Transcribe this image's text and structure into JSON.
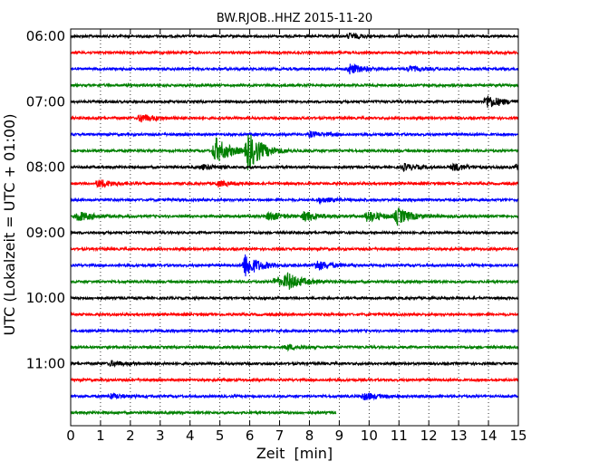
{
  "chart_data": {
    "type": "line",
    "title": "BW.RJOB..HHZ 2015-11-20",
    "xlabel": "Zeit  [min]",
    "ylabel": "UTC (Lokalzeit = UTC + 01:00)",
    "xlim": [
      0,
      15
    ],
    "x_ticks": [
      "0",
      "1",
      "2",
      "3",
      "4",
      "5",
      "6",
      "7",
      "8",
      "9",
      "10",
      "11",
      "12",
      "13",
      "14",
      "15"
    ],
    "y_ticks": [
      "06:00",
      "07:00",
      "08:00",
      "09:00",
      "10:00",
      "11:00"
    ],
    "minutes_per_line": 15,
    "grid": "vertical dotted",
    "colors": [
      "#000000",
      "#ff0000",
      "#0000ff",
      "#008000"
    ],
    "traces": [
      {
        "start": "06:00",
        "events": [
          {
            "t": 9.3,
            "amp": 3
          }
        ]
      },
      {
        "start": "06:15",
        "events": []
      },
      {
        "start": "06:30",
        "events": [
          {
            "t": 9.3,
            "amp": 6
          },
          {
            "t": 11.3,
            "amp": 3
          }
        ]
      },
      {
        "start": "06:45",
        "events": []
      },
      {
        "start": "07:00",
        "events": [
          {
            "t": 13.9,
            "amp": 8
          }
        ]
      },
      {
        "start": "07:15",
        "events": [
          {
            "t": 2.3,
            "amp": 5
          }
        ]
      },
      {
        "start": "07:30",
        "events": [
          {
            "t": 8.0,
            "amp": 3
          }
        ]
      },
      {
        "start": "07:45",
        "events": [
          {
            "t": 4.8,
            "amp": 16
          },
          {
            "t": 5.9,
            "amp": 22
          }
        ]
      },
      {
        "start": "08:00",
        "events": [
          {
            "t": 4.4,
            "amp": 3
          },
          {
            "t": 11.1,
            "amp": 4
          },
          {
            "t": 12.8,
            "amp": 4
          },
          {
            "t": 14.9,
            "amp": 3
          }
        ]
      },
      {
        "start": "08:15",
        "events": [
          {
            "t": 0.9,
            "amp": 5
          },
          {
            "t": 4.9,
            "amp": 3
          }
        ]
      },
      {
        "start": "08:30",
        "events": [
          {
            "t": 8.3,
            "amp": 3
          }
        ]
      },
      {
        "start": "08:45",
        "events": [
          {
            "t": 0.2,
            "amp": 6
          },
          {
            "t": 6.6,
            "amp": 5
          },
          {
            "t": 7.8,
            "amp": 6
          },
          {
            "t": 9.9,
            "amp": 7
          },
          {
            "t": 10.9,
            "amp": 9
          }
        ]
      },
      {
        "start": "09:00",
        "events": []
      },
      {
        "start": "09:15",
        "events": []
      },
      {
        "start": "09:30",
        "events": [
          {
            "t": 5.8,
            "amp": 14
          },
          {
            "t": 8.2,
            "amp": 6
          }
        ]
      },
      {
        "start": "09:45",
        "events": [
          {
            "t": 6.8,
            "amp": 5
          },
          {
            "t": 7.2,
            "amp": 9
          }
        ]
      },
      {
        "start": "10:00",
        "events": []
      },
      {
        "start": "10:15",
        "events": []
      },
      {
        "start": "10:30",
        "events": []
      },
      {
        "start": "10:45",
        "events": [
          {
            "t": 7.2,
            "amp": 3
          }
        ]
      },
      {
        "start": "11:00",
        "events": [
          {
            "t": 1.3,
            "amp": 3
          }
        ]
      },
      {
        "start": "11:15",
        "events": []
      },
      {
        "start": "11:30",
        "events": [
          {
            "t": 1.3,
            "amp": 3
          },
          {
            "t": 9.8,
            "amp": 4
          }
        ]
      },
      {
        "start": "11:45",
        "events": [],
        "end": 8.9
      }
    ]
  }
}
